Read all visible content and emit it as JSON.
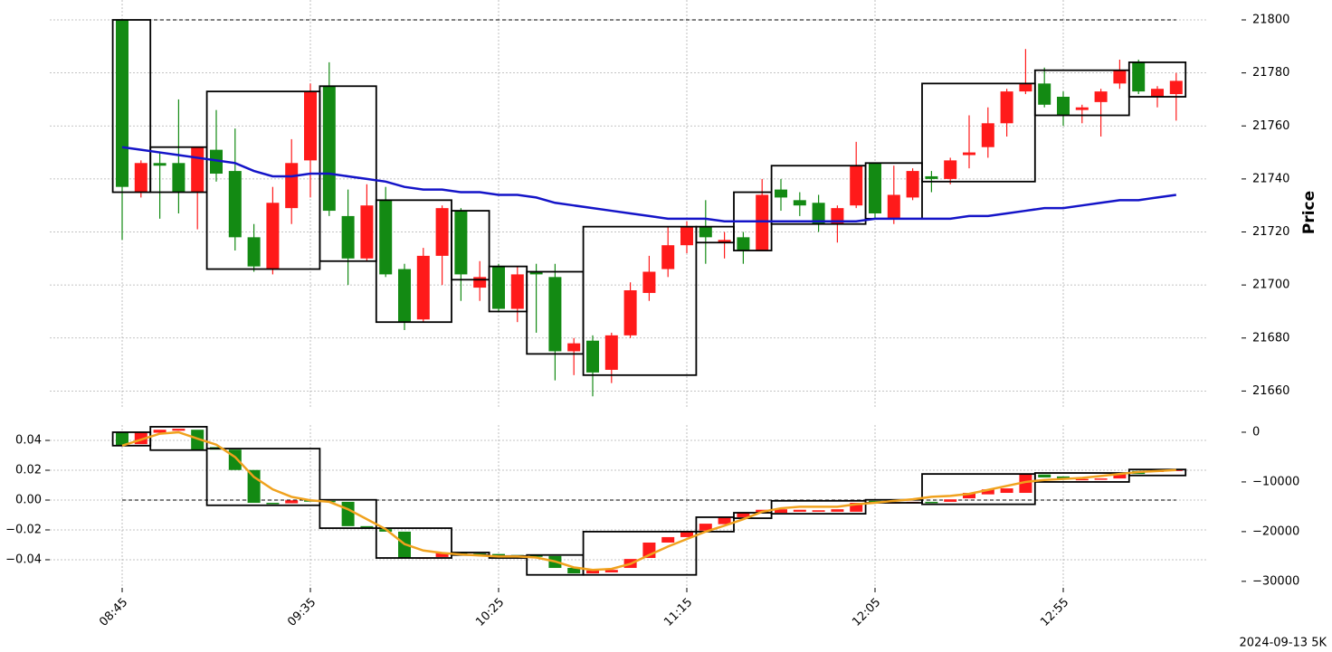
{
  "chart_data": [
    {
      "type": "candlestick",
      "ylabel": "Price",
      "up_color": "#ff1a1a",
      "down_color": "#138a13",
      "ylim": [
        21654,
        21807.5
      ],
      "yticks": [
        21660,
        21680,
        21700,
        21720,
        21740,
        21760,
        21780,
        21800
      ],
      "grid": true,
      "open": [
        21800,
        21735,
        21746,
        21746,
        21735,
        21751,
        21743,
        21718,
        21706,
        21729,
        21747,
        21775,
        21726,
        21710,
        21732,
        21706,
        21687,
        21711,
        21728,
        21699,
        21707,
        21691,
        21705,
        21703,
        21675,
        21679,
        21668,
        21681,
        21697,
        21706,
        21715,
        21722,
        21716,
        21718,
        21713,
        21736,
        21732,
        21731,
        21723,
        21730,
        21746,
        21725,
        21733,
        21741,
        21740,
        21749,
        21752,
        21761,
        21773,
        21776,
        21771,
        21766,
        21769,
        21776,
        21784,
        21771,
        21772
      ],
      "high": [
        21800,
        21747,
        21750,
        21770,
        21752,
        21766,
        21759,
        21723,
        21737,
        21755,
        21776,
        21784,
        21736,
        21738,
        21737,
        21708,
        21714,
        21730,
        21729,
        21709,
        21708,
        21707,
        21708,
        21708,
        21680,
        21681,
        21682,
        21701,
        21711,
        21722,
        21724,
        21732,
        21720,
        21720,
        21740,
        21740,
        21735,
        21734,
        21730,
        21754,
        21746,
        21745,
        21744,
        21743,
        21748,
        21764,
        21767,
        21774,
        21789,
        21782,
        21773,
        21768,
        21774,
        21785,
        21785,
        21775,
        21780
      ],
      "low": [
        21717,
        21733,
        21725,
        21727,
        21721,
        21739,
        21713,
        21705,
        21704,
        21723,
        21733,
        21726,
        21700,
        21709,
        21703,
        21683,
        21686,
        21700,
        21694,
        21694,
        21690,
        21686,
        21682,
        21664,
        21666,
        21658,
        21663,
        21680,
        21694,
        21703,
        21712,
        21708,
        21710,
        21708,
        21713,
        21728,
        21726,
        21720,
        21716,
        21729,
        21725,
        21723,
        21732,
        21735,
        21738,
        21744,
        21748,
        21756,
        21772,
        21767,
        21760,
        21761,
        21756,
        21774,
        21772,
        21767,
        21762
      ],
      "close": [
        21737,
        21746,
        21745,
        21735,
        21752,
        21742,
        21718,
        21707,
        21731,
        21746,
        21773,
        21728,
        21710,
        21730,
        21704,
        21686,
        21711,
        21729,
        21704,
        21703,
        21691,
        21704,
        21704,
        21675,
        21678,
        21667,
        21681,
        21698,
        21705,
        21715,
        21722,
        21718,
        21717,
        21713,
        21734,
        21733,
        21730,
        21723,
        21729,
        21745,
        21727,
        21734,
        21743,
        21740,
        21747,
        21750,
        21761,
        21773,
        21776,
        21768,
        21764,
        21767,
        21773,
        21781,
        21773,
        21774,
        21777
      ],
      "line": {
        "color": "#1414c8",
        "values": [
          21752,
          21751,
          21750,
          21749,
          21748,
          21747,
          21746,
          21743,
          21741,
          21741,
          21742,
          21742,
          21741,
          21740,
          21739,
          21737,
          21736,
          21736,
          21735,
          21735,
          21734,
          21734,
          21733,
          21731,
          21730,
          21729,
          21728,
          21727,
          21726,
          21725,
          21725,
          21725,
          21724,
          21724,
          21724,
          21724,
          21724,
          21724,
          21724,
          21724,
          21725,
          21725,
          21725,
          21725,
          21725,
          21726,
          21726,
          21727,
          21728,
          21729,
          21729,
          21730,
          21731,
          21732,
          21732,
          21733,
          21734
        ]
      },
      "hline": 21800,
      "boxes": [
        {
          "start": 0,
          "end": 1,
          "high": 21800,
          "low": 21735
        },
        {
          "start": 2,
          "end": 4,
          "high": 21752,
          "low": 21735
        },
        {
          "start": 5,
          "end": 10,
          "high": 21773,
          "low": 21706
        },
        {
          "start": 11,
          "end": 13,
          "high": 21775,
          "low": 21709
        },
        {
          "start": 14,
          "end": 17,
          "high": 21732,
          "low": 21686
        },
        {
          "start": 18,
          "end": 19,
          "high": 21728,
          "low": 21702
        },
        {
          "start": 20,
          "end": 21,
          "high": 21707,
          "low": 21690
        },
        {
          "start": 22,
          "end": 24,
          "high": 21705,
          "low": 21674
        },
        {
          "start": 25,
          "end": 30,
          "high": 21722,
          "low": 21666
        },
        {
          "start": 31,
          "end": 32,
          "high": 21722,
          "low": 21716
        },
        {
          "start": 33,
          "end": 34,
          "high": 21735,
          "low": 21713
        },
        {
          "start": 35,
          "end": 39,
          "high": 21745,
          "low": 21723
        },
        {
          "start": 40,
          "end": 42,
          "high": 21746,
          "low": 21725
        },
        {
          "start": 43,
          "end": 48,
          "high": 21776,
          "low": 21739
        },
        {
          "start": 49,
          "end": 53,
          "high": 21781,
          "low": 21764
        },
        {
          "start": 54,
          "end": 56,
          "high": 21784,
          "low": 21771
        }
      ]
    },
    {
      "type": "candlestick",
      "up_color": "#ff1a1a",
      "down_color": "#138a13",
      "categories": [
        "08:45",
        null,
        null,
        null,
        null,
        null,
        null,
        null,
        null,
        null,
        "09:35",
        null,
        null,
        null,
        null,
        null,
        null,
        null,
        null,
        null,
        "10:25",
        null,
        null,
        null,
        null,
        null,
        null,
        null,
        null,
        null,
        "11:15",
        null,
        null,
        null,
        null,
        null,
        null,
        null,
        null,
        null,
        "12:05",
        null,
        null,
        null,
        null,
        null,
        null,
        null,
        null,
        null,
        "12:55",
        null,
        null,
        null,
        null,
        null,
        null
      ],
      "ylim": [
        -0.0588,
        0.0503
      ],
      "yticks": [
        {
          "value": -0.04,
          "label": "−0.04"
        },
        {
          "value": -0.02,
          "label": "−0.02"
        },
        {
          "value": 0,
          "label": "0.00"
        },
        0.02,
        0.04
      ],
      "y2lim": [
        -31300,
        1450
      ],
      "y2ticks": [
        {
          "value": -30000,
          "label": "−30000"
        },
        {
          "value": -20000,
          "label": "−20000"
        },
        {
          "value": -10000,
          "label": "−10000"
        },
        0
      ],
      "hline": 0,
      "open": [
        0,
        -2400,
        -100,
        300,
        500,
        -3000,
        -3500,
        -7600,
        -14200,
        -14300,
        -13700,
        -13800,
        -14000,
        -18900,
        -19500,
        -20000,
        -25300,
        -25100,
        -24200,
        -24400,
        -24500,
        -24700,
        -24800,
        -24900,
        -27300,
        -28400,
        -28200,
        -27300,
        -25300,
        -22200,
        -21100,
        -19800,
        -18500,
        -17100,
        -16300,
        -16200,
        -16000,
        -16000,
        -16000,
        -16000,
        -13800,
        -14200,
        -14100,
        -14000,
        -14000,
        -13300,
        -12500,
        -12200,
        -12200,
        -8500,
        -8900,
        -9500,
        -9400,
        -9300,
        -7800,
        -8000,
        -7800
      ],
      "close": [
        -2600,
        -100,
        500,
        700,
        -3600,
        -3500,
        -7600,
        -14200,
        -14300,
        -13700,
        -13800,
        -13900,
        -18900,
        -19100,
        -20000,
        -25300,
        -25200,
        -24200,
        -24400,
        -24500,
        -24700,
        -24800,
        -24900,
        -27300,
        -28400,
        -27800,
        -27700,
        -25500,
        -22200,
        -21100,
        -20000,
        -18400,
        -17100,
        -16200,
        -15600,
        -15500,
        -15600,
        -15700,
        -15500,
        -14200,
        -14200,
        -14100,
        -14000,
        -14100,
        -13500,
        -12200,
        -11500,
        -11300,
        -8400,
        -9100,
        -9500,
        -9400,
        -9300,
        -8200,
        -8400,
        -7500,
        -7500
      ],
      "line": {
        "color": "#f0a21e",
        "values": [
          -2700,
          -1500,
          -300,
          0,
          -1300,
          -2500,
          -5000,
          -9000,
          -11500,
          -13000,
          -13700,
          -14000,
          -15500,
          -17500,
          -19500,
          -22500,
          -23800,
          -24300,
          -24600,
          -24800,
          -25000,
          -25000,
          -25200,
          -26000,
          -27200,
          -27700,
          -27500,
          -26500,
          -24700,
          -23000,
          -21500,
          -20000,
          -18800,
          -17500,
          -16000,
          -15300,
          -15000,
          -15000,
          -15000,
          -14500,
          -14200,
          -13800,
          -13500,
          -13000,
          -12800,
          -12400,
          -11600,
          -10800,
          -10000,
          -9600,
          -9400,
          -9200,
          -8800,
          -8400,
          -8000,
          -7800,
          -7600
        ]
      },
      "boxes": [
        {
          "start": 0,
          "end": 1,
          "high": 0,
          "low": -2700
        },
        {
          "start": 2,
          "end": 4,
          "high": 1100,
          "low": -3600
        },
        {
          "start": 5,
          "end": 10,
          "high": -3300,
          "low": -14700
        },
        {
          "start": 11,
          "end": 13,
          "high": -13600,
          "low": -19300
        },
        {
          "start": 14,
          "end": 17,
          "high": -19300,
          "low": -25300
        },
        {
          "start": 18,
          "end": 19,
          "high": -24200,
          "low": -24700
        },
        {
          "start": 20,
          "end": 21,
          "high": -24900,
          "low": -25300
        },
        {
          "start": 22,
          "end": 24,
          "high": -24700,
          "low": -28700
        },
        {
          "start": 25,
          "end": 30,
          "high": -20000,
          "low": -28700
        },
        {
          "start": 31,
          "end": 32,
          "high": -17100,
          "low": -20000
        },
        {
          "start": 33,
          "end": 34,
          "high": -16200,
          "low": -17300
        },
        {
          "start": 35,
          "end": 39,
          "high": -13800,
          "low": -16400
        },
        {
          "start": 40,
          "end": 42,
          "high": -13600,
          "low": -14200
        },
        {
          "start": 43,
          "end": 48,
          "high": -8400,
          "low": -14500
        },
        {
          "start": 49,
          "end": 53,
          "high": -8200,
          "low": -10000
        },
        {
          "start": 54,
          "end": 56,
          "high": -7500,
          "low": -8700
        }
      ]
    }
  ],
  "footer": "2024-09-13 5K"
}
